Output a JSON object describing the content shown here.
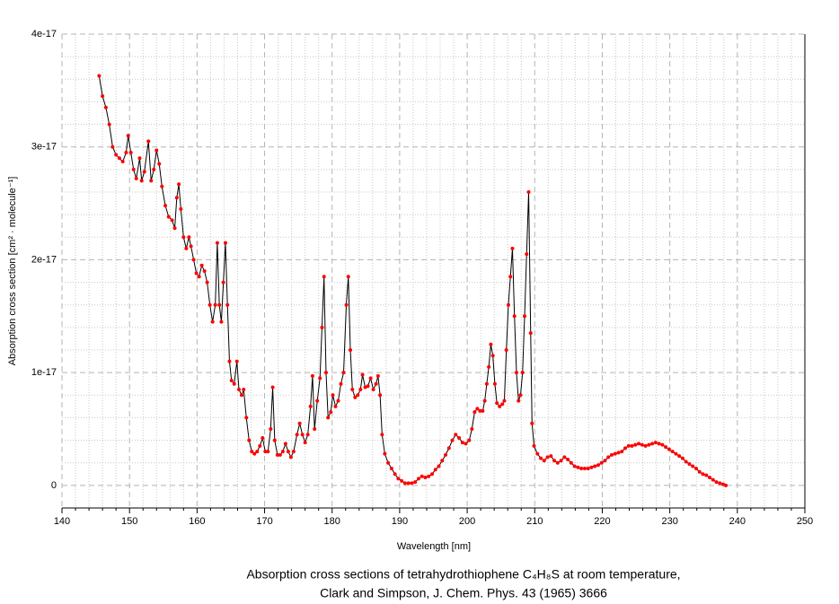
{
  "chart_data": {
    "type": "line",
    "title": [
      "Absorption cross sections of tetrahydrothiophene C₄H₈S at room temperature,",
      "Clark and Simpson, J. Chem. Phys. 43 (1965) 3666"
    ],
    "x_label": "Wavelength [nm]",
    "y_label": "Absorption cross section [cm² · molecule⁻¹]",
    "xlim": [
      140,
      250
    ],
    "xticks": [
      140,
      150,
      160,
      170,
      180,
      190,
      200,
      210,
      220,
      230,
      240,
      250
    ],
    "ylim": [
      -2e-18,
      4e-17
    ],
    "yticks": [
      0,
      1e-17,
      2e-17,
      3e-17,
      4e-17
    ],
    "grid": true,
    "minor_divisions": 5,
    "series": [
      {
        "color": "#000000",
        "marker_color": "#ff0000",
        "x": [
          145.5,
          146,
          146.5,
          147,
          147.5,
          148,
          148.5,
          149,
          149.5,
          149.8,
          150.2,
          150.6,
          151,
          151.5,
          151.8,
          152.2,
          152.8,
          153.2,
          153.6,
          154,
          154.4,
          154.8,
          155.3,
          155.8,
          156.3,
          156.7,
          157,
          157.3,
          157.6,
          158,
          158.4,
          158.8,
          159.1,
          159.5,
          159.9,
          160.3,
          160.7,
          161.1,
          161.5,
          161.9,
          162.3,
          162.7,
          163,
          163.3,
          163.6,
          163.9,
          164.2,
          164.5,
          164.8,
          165.1,
          165.5,
          165.9,
          166.2,
          166.6,
          166.9,
          167.3,
          167.7,
          168.1,
          168.5,
          168.9,
          169.3,
          169.7,
          170.1,
          170.5,
          170.9,
          171.2,
          171.5,
          171.9,
          172.3,
          172.7,
          173.1,
          173.5,
          173.9,
          174.3,
          174.8,
          175.2,
          175.6,
          176,
          176.4,
          176.8,
          177.1,
          177.4,
          177.8,
          178.2,
          178.5,
          178.8,
          179.1,
          179.4,
          179.8,
          180.1,
          180.5,
          180.9,
          181.3,
          181.7,
          182.1,
          182.4,
          182.7,
          183,
          183.4,
          183.8,
          184.2,
          184.5,
          184.9,
          185.3,
          185.7,
          186.1,
          186.5,
          186.8,
          187.1,
          187.4,
          187.8,
          188.3,
          188.8,
          189.3,
          189.8,
          190.3,
          190.8,
          191.3,
          191.8,
          192.3,
          192.8,
          193.3,
          193.8,
          194.3,
          194.8,
          195.3,
          195.8,
          196.3,
          196.8,
          197.3,
          197.8,
          198.3,
          198.8,
          199.3,
          199.8,
          200.3,
          200.7,
          201.1,
          201.5,
          201.9,
          202.3,
          202.6,
          202.9,
          203.2,
          203.5,
          203.8,
          204.1,
          204.4,
          204.8,
          205.2,
          205.5,
          205.8,
          206.1,
          206.4,
          206.7,
          207,
          207.3,
          207.6,
          207.9,
          208.2,
          208.5,
          208.8,
          209.1,
          209.4,
          209.6,
          209.9,
          210.4,
          210.9,
          211.4,
          211.9,
          212.4,
          212.9,
          213.4,
          213.9,
          214.4,
          214.9,
          215.4,
          215.9,
          216.4,
          216.9,
          217.4,
          217.9,
          218.4,
          218.9,
          219.4,
          219.9,
          220.4,
          220.9,
          221.4,
          221.9,
          222.4,
          222.9,
          223.4,
          223.9,
          224.4,
          224.9,
          225.4,
          225.9,
          226.4,
          226.9,
          227.4,
          227.9,
          228.4,
          228.9,
          229.4,
          229.9,
          230.4,
          230.9,
          231.4,
          231.9,
          232.4,
          232.9,
          233.4,
          233.9,
          234.4,
          234.9,
          235.4,
          235.9,
          236.4,
          236.9,
          237.4,
          237.9,
          238.3
        ],
        "values": [
          3.63e-17,
          3.45e-17,
          3.35e-17,
          3.2e-17,
          3e-17,
          2.93e-17,
          2.9e-17,
          2.87e-17,
          2.95e-17,
          3.1e-17,
          2.95e-17,
          2.8e-17,
          2.72e-17,
          2.9e-17,
          2.7e-17,
          2.78e-17,
          3.05e-17,
          2.7e-17,
          2.8e-17,
          2.97e-17,
          2.85e-17,
          2.65e-17,
          2.48e-17,
          2.38e-17,
          2.35e-17,
          2.28e-17,
          2.55e-17,
          2.67e-17,
          2.45e-17,
          2.2e-17,
          2.1e-17,
          2.2e-17,
          2.12e-17,
          2e-17,
          1.88e-17,
          1.85e-17,
          1.95e-17,
          1.9e-17,
          1.8e-17,
          1.6e-17,
          1.45e-17,
          1.6e-17,
          2.15e-17,
          1.6e-17,
          1.45e-17,
          1.8e-17,
          2.15e-17,
          1.6e-17,
          1.1e-17,
          9.3e-18,
          9e-18,
          1.1e-17,
          8.5e-18,
          8e-18,
          8.5e-18,
          6e-18,
          4e-18,
          3e-18,
          2.8e-18,
          3e-18,
          3.5e-18,
          4.2e-18,
          3e-18,
          3e-18,
          5e-18,
          8.7e-18,
          4e-18,
          2.7e-18,
          2.7e-18,
          3e-18,
          3.7e-18,
          3e-18,
          2.5e-18,
          3e-18,
          4.5e-18,
          5.5e-18,
          4.5e-18,
          3.8e-18,
          4.5e-18,
          7e-18,
          9.7e-18,
          5e-18,
          7.5e-18,
          9.5e-18,
          1.4e-17,
          1.85e-17,
          1e-17,
          6e-18,
          6.5e-18,
          8e-18,
          7e-18,
          7.5e-18,
          9e-18,
          1e-17,
          1.6e-17,
          1.85e-17,
          1.2e-17,
          8.5e-18,
          7.8e-18,
          8e-18,
          8.5e-18,
          9.8e-18,
          8.7e-18,
          8.8e-18,
          9.5e-18,
          8.5e-18,
          9e-18,
          9.7e-18,
          8e-18,
          4.5e-18,
          2.8e-18,
          2e-18,
          1.5e-18,
          1e-18,
          6e-19,
          4e-19,
          2e-19,
          2e-19,
          2e-19,
          3e-19,
          6e-19,
          8e-19,
          7e-19,
          8e-19,
          1e-18,
          1.4e-18,
          1.7e-18,
          2.2e-18,
          2.7e-18,
          3.3e-18,
          4e-18,
          4.5e-18,
          4.2e-18,
          3.8e-18,
          3.7e-18,
          4e-18,
          5e-18,
          6.5e-18,
          6.8e-18,
          6.6e-18,
          6.6e-18,
          7.5e-18,
          9e-18,
          1.05e-17,
          1.25e-17,
          1.15e-17,
          9e-18,
          7.3e-18,
          7e-18,
          7.2e-18,
          7.5e-18,
          1.2e-17,
          1.6e-17,
          1.85e-17,
          2.1e-17,
          1.5e-17,
          1e-17,
          7.5e-18,
          8e-18,
          1e-17,
          1.5e-17,
          2.05e-17,
          2.6e-17,
          1.35e-17,
          5.5e-18,
          3.5e-18,
          2.8e-18,
          2.4e-18,
          2.2e-18,
          2.5e-18,
          2.6e-18,
          2.2e-18,
          2e-18,
          2.2e-18,
          2.5e-18,
          2.3e-18,
          2e-18,
          1.7e-18,
          1.6e-18,
          1.5e-18,
          1.5e-18,
          1.5e-18,
          1.6e-18,
          1.7e-18,
          1.8e-18,
          2e-18,
          2.2e-18,
          2.5e-18,
          2.7e-18,
          2.8e-18,
          2.9e-18,
          3e-18,
          3.3e-18,
          3.5e-18,
          3.5e-18,
          3.6e-18,
          3.7e-18,
          3.6e-18,
          3.5e-18,
          3.6e-18,
          3.7e-18,
          3.8e-18,
          3.7e-18,
          3.6e-18,
          3.4e-18,
          3.2e-18,
          3e-18,
          2.8e-18,
          2.6e-18,
          2.4e-18,
          2.1e-18,
          1.9e-18,
          1.7e-18,
          1.5e-18,
          1.2e-18,
          1e-18,
          9e-19,
          7e-19,
          5e-19,
          3e-19,
          2e-19,
          1e-19,
          0
        ]
      }
    ]
  }
}
